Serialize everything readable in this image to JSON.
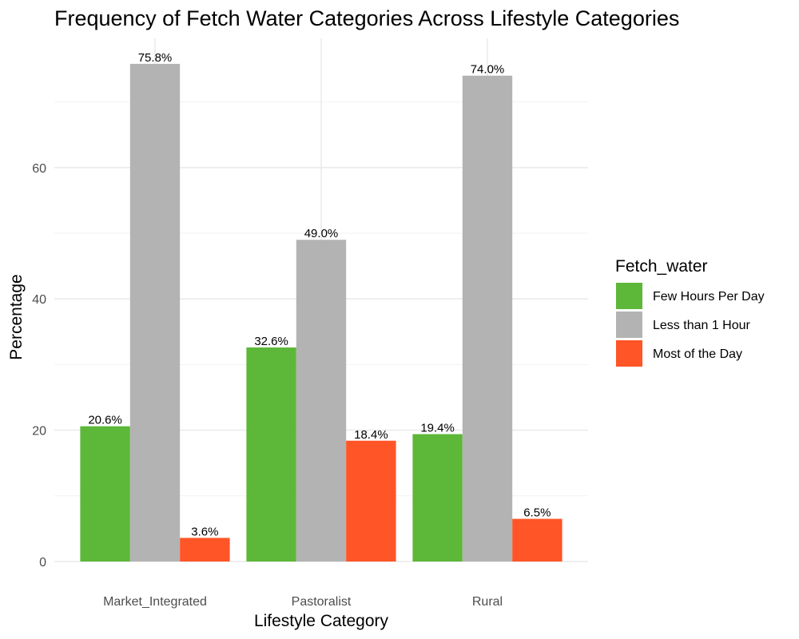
{
  "chart_data": {
    "type": "bar",
    "title": "Frequency of Fetch Water Categories Across Lifestyle Categories",
    "xlabel": "Lifestyle Category",
    "ylabel": "Percentage",
    "categories": [
      "Market_Integrated",
      "Pastoralist",
      "Rural"
    ],
    "series": [
      {
        "name": "Few Hours Per Day",
        "color": "#5DB738",
        "values": [
          20.6,
          32.6,
          19.4
        ],
        "labels": [
          "20.6%",
          "32.6%",
          "19.4%"
        ]
      },
      {
        "name": "Less than 1 Hour",
        "color": "#B3B3B3",
        "values": [
          75.8,
          49.0,
          74.0
        ],
        "labels": [
          "75.8%",
          "49.0%",
          "74.0%"
        ]
      },
      {
        "name": "Most of the Day",
        "color": "#FF5527",
        "values": [
          3.6,
          18.4,
          6.5
        ],
        "labels": [
          "3.6%",
          "18.4%",
          "6.5%"
        ]
      }
    ],
    "ylim": [
      0,
      80
    ],
    "yticks": [
      0,
      20,
      40,
      60
    ],
    "ytick_labels": [
      "0",
      "20",
      "40",
      "60"
    ],
    "grid": true,
    "legend": {
      "title": "Fetch_water",
      "position": "right"
    }
  }
}
